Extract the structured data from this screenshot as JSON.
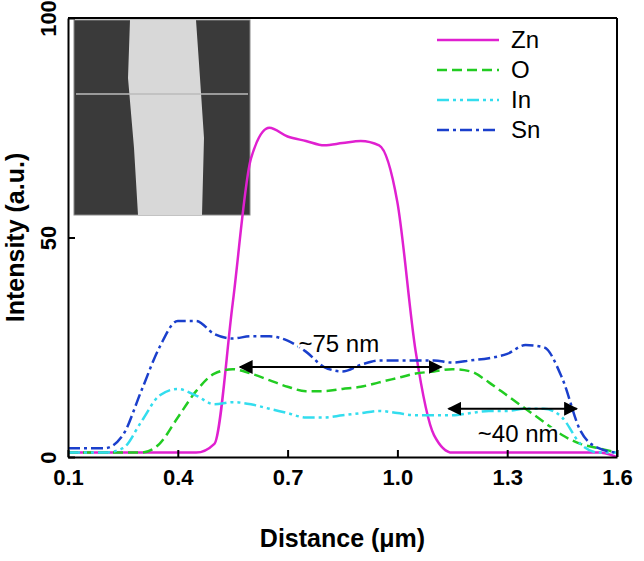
{
  "chart_data": {
    "type": "line",
    "x_label": "Distance (μm)",
    "y_label": "Intensity (a.u.)",
    "x": [
      0.1,
      0.15,
      0.2,
      0.25,
      0.3,
      0.35,
      0.4,
      0.45,
      0.5,
      0.55,
      0.6,
      0.65,
      0.7,
      0.75,
      0.8,
      0.85,
      0.9,
      0.95,
      1.0,
      1.05,
      1.1,
      1.15,
      1.2,
      1.25,
      1.3,
      1.35,
      1.4,
      1.45,
      1.5,
      1.55,
      1.6
    ],
    "series": [
      {
        "name": "Zn",
        "color": "#e020d0",
        "line_style": "solid",
        "values": [
          1,
          1,
          1,
          1,
          1,
          1,
          1,
          1,
          3,
          35,
          68,
          75,
          73,
          72,
          71,
          71.5,
          72,
          71,
          58,
          24,
          5,
          1,
          1,
          1,
          1,
          1,
          1,
          1,
          1,
          1,
          0
        ]
      },
      {
        "name": "O",
        "color": "#22cc22",
        "line_style": "dashed",
        "values": [
          1,
          1,
          1,
          1,
          1,
          3,
          9,
          15,
          19,
          20,
          19,
          17.5,
          16,
          15,
          15,
          15.5,
          16,
          17,
          18,
          19,
          19.5,
          20,
          19.5,
          17,
          14,
          11,
          8,
          5,
          3,
          2,
          1
        ]
      },
      {
        "name": "In",
        "color": "#33ddee",
        "line_style": "dashdotdot",
        "values": [
          1,
          1,
          1,
          2,
          8,
          14,
          15.5,
          14,
          12,
          12.5,
          12,
          11,
          10,
          9,
          9,
          9.5,
          10,
          10.5,
          10,
          9.5,
          9.5,
          9.5,
          10,
          10.5,
          10.5,
          11,
          11,
          9,
          3,
          1,
          1
        ]
      },
      {
        "name": "Sn",
        "color": "#1a3fcc",
        "line_style": "dashdot",
        "values": [
          2,
          2,
          2,
          5,
          15,
          25,
          31,
          31,
          28,
          27,
          27.5,
          27.5,
          26.5,
          24,
          20.5,
          19.5,
          21,
          22,
          22,
          22,
          22,
          21.5,
          22,
          22.5,
          23.5,
          25.5,
          25,
          18,
          6,
          2,
          1
        ]
      }
    ],
    "xlim": [
      0.1,
      1.6
    ],
    "xticks": [
      0.1,
      0.4,
      0.7,
      {
        "value": 1.0,
        "label": "1.0"
      },
      1.3,
      1.6
    ],
    "ylim": [
      0,
      100
    ],
    "yticks": [
      0,
      50,
      100
    ],
    "legend": "upper right",
    "annotations": [
      {
        "text": "~75 nm"
      },
      {
        "text": "~40 nm"
      }
    ]
  }
}
